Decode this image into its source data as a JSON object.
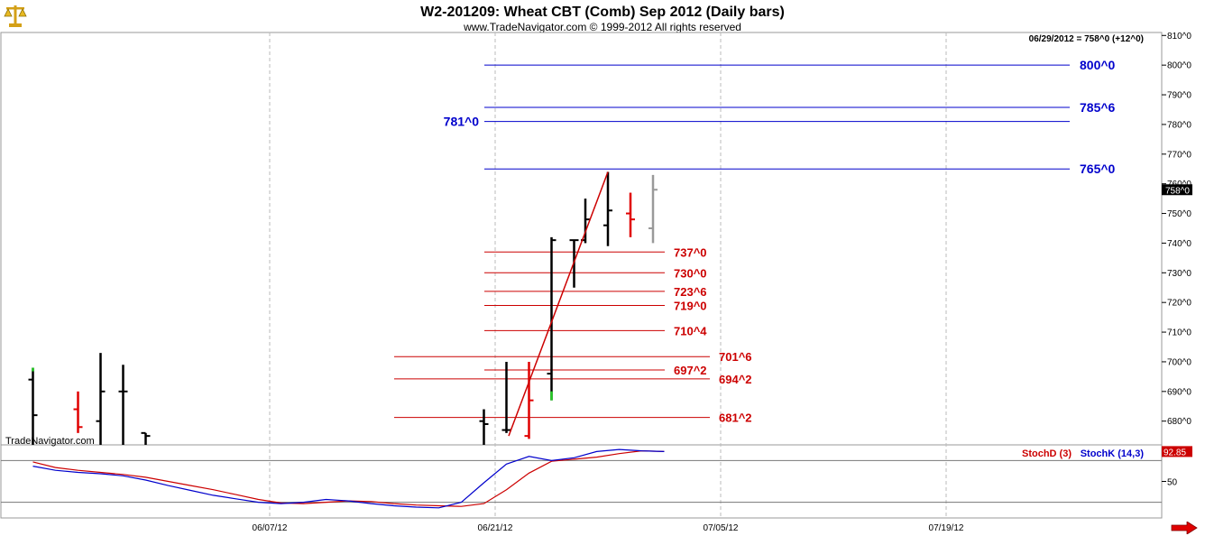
{
  "header": {
    "title": "W2-201209:  Wheat CBT (Comb) Sep 2012  (Daily bars)",
    "subtitle": "www.TradeNavigator.com © 1999-2012 All rights reserved",
    "last_price_note": "06/29/2012 = 758^0 (+12^0)",
    "watermark": "TradeNavigator.com",
    "logo_icon": "scales-icon",
    "nav_arrow_icon": "right-arrow-icon"
  },
  "chart_data": [
    {
      "type": "ohlc",
      "panel": "price",
      "y_axis_side": "right",
      "ylim": [
        672,
        811
      ],
      "y_ticks": [
        "680^0",
        "690^0",
        "700^0",
        "710^0",
        "720^0",
        "730^0",
        "740^0",
        "750^0",
        "760^0",
        "770^0",
        "780^0",
        "790^0",
        "800^0",
        "810^0"
      ],
      "y_tick_values": [
        680,
        690,
        700,
        710,
        720,
        730,
        740,
        750,
        760,
        770,
        780,
        790,
        800,
        810
      ],
      "x_ticks": [
        "06/07/12",
        "06/21/12",
        "07/05/12",
        "07/19/12"
      ],
      "x_tick_index": [
        11,
        21,
        31,
        41
      ],
      "last_price_label": "758^0",
      "last_price_value": 758,
      "bars": [
        {
          "i": 0.5,
          "o": 694,
          "h": 698,
          "l": 672,
          "c": 682,
          "color": "black",
          "tip": "green"
        },
        {
          "i": 2.5,
          "o": 684,
          "h": 690,
          "l": 676,
          "c": 678,
          "color": "red"
        },
        {
          "i": 3.5,
          "o": 680,
          "h": 703,
          "l": 672,
          "c": 690,
          "color": "black"
        },
        {
          "i": 4.5,
          "o": 690,
          "h": 699,
          "l": 672,
          "c": 690,
          "color": "black"
        },
        {
          "i": 5.5,
          "o": 676,
          "h": 676,
          "l": 672,
          "c": 675,
          "color": "black"
        },
        {
          "i": 20.5,
          "o": 680,
          "h": 684,
          "l": 672,
          "c": 679,
          "color": "black"
        },
        {
          "i": 21.5,
          "o": 677,
          "h": 700,
          "l": 676,
          "c": 677,
          "color": "black"
        },
        {
          "i": 22.5,
          "o": 675,
          "h": 700,
          "l": 674,
          "c": 687,
          "color": "red"
        },
        {
          "i": 23.5,
          "o": 696,
          "h": 742,
          "l": 687,
          "c": 741,
          "color": "black",
          "tail": "green"
        },
        {
          "i": 24.5,
          "o": 741,
          "h": 741,
          "l": 725,
          "c": 741,
          "color": "black"
        },
        {
          "i": 25.0,
          "o": 741,
          "h": 755,
          "l": 740,
          "c": 748,
          "color": "black"
        },
        {
          "i": 26.0,
          "o": 746,
          "h": 764,
          "l": 739,
          "c": 751,
          "color": "black"
        },
        {
          "i": 27.0,
          "o": 750,
          "h": 757,
          "l": 742,
          "c": 748,
          "color": "red"
        },
        {
          "i": 28.0,
          "o": 745,
          "h": 763,
          "l": 740,
          "c": 758,
          "color": "gray"
        }
      ],
      "trend_line": {
        "from": {
          "i": 21.6,
          "v": 675
        },
        "to": {
          "i": 26.0,
          "v": 764
        },
        "color": "#cc0000"
      },
      "resistance_levels": [
        {
          "label": "800^0",
          "value": 800,
          "color": "#0000cc"
        },
        {
          "label": "785^6",
          "value": 785.75,
          "color": "#0000cc"
        },
        {
          "label": "781^0",
          "value": 781,
          "color": "#0000cc"
        },
        {
          "label": "765^0",
          "value": 765,
          "color": "#0000cc"
        }
      ],
      "support_levels": [
        {
          "label": "737^0",
          "value": 737,
          "color": "#cc0000"
        },
        {
          "label": "730^0",
          "value": 730,
          "color": "#cc0000"
        },
        {
          "label": "723^6",
          "value": 723.75,
          "color": "#cc0000"
        },
        {
          "label": "719^0",
          "value": 719,
          "color": "#cc0000"
        },
        {
          "label": "710^4",
          "value": 710.5,
          "color": "#cc0000"
        },
        {
          "label": "701^6",
          "value": 701.75,
          "color": "#cc0000"
        },
        {
          "label": "697^2",
          "value": 697.25,
          "color": "#cc0000"
        },
        {
          "label": "694^2",
          "value": 694.25,
          "color": "#cc0000"
        },
        {
          "label": "681^2",
          "value": 681.25,
          "color": "#cc0000"
        }
      ]
    },
    {
      "type": "line",
      "panel": "stochastic",
      "ylim": [
        0,
        100
      ],
      "y_ticks": [
        "50"
      ],
      "y_tick_values": [
        50
      ],
      "reference_lines": [
        20,
        80
      ],
      "last_value_label": "92.85",
      "series": [
        {
          "name": "StochD (3)",
          "color": "#cc0000",
          "x": [
            0,
            1,
            2,
            3,
            4,
            5,
            6,
            7,
            8,
            9,
            10,
            11,
            12,
            13,
            14,
            15,
            16,
            17,
            18,
            19,
            20,
            21,
            22,
            23,
            24,
            25,
            26,
            27,
            28
          ],
          "values": [
            78,
            70,
            66,
            63,
            60,
            56,
            50,
            44,
            38,
            31,
            24,
            19,
            18,
            20,
            22,
            21,
            18,
            16,
            15,
            14,
            18,
            38,
            62,
            79,
            82,
            85,
            90,
            94,
            93
          ]
        },
        {
          "name": "StochK (14,3)",
          "color": "#0000cc",
          "x": [
            0,
            1,
            2,
            3,
            4,
            5,
            6,
            7,
            8,
            9,
            10,
            11,
            12,
            13,
            14,
            15,
            16,
            17,
            18,
            19,
            20,
            21,
            22,
            23,
            24,
            25,
            26,
            27,
            28
          ],
          "values": [
            72,
            66,
            63,
            61,
            58,
            52,
            44,
            37,
            30,
            25,
            20,
            18,
            20,
            24,
            22,
            18,
            15,
            13,
            12,
            20,
            48,
            75,
            86,
            80,
            84,
            93,
            96,
            94,
            93
          ]
        }
      ]
    }
  ]
}
